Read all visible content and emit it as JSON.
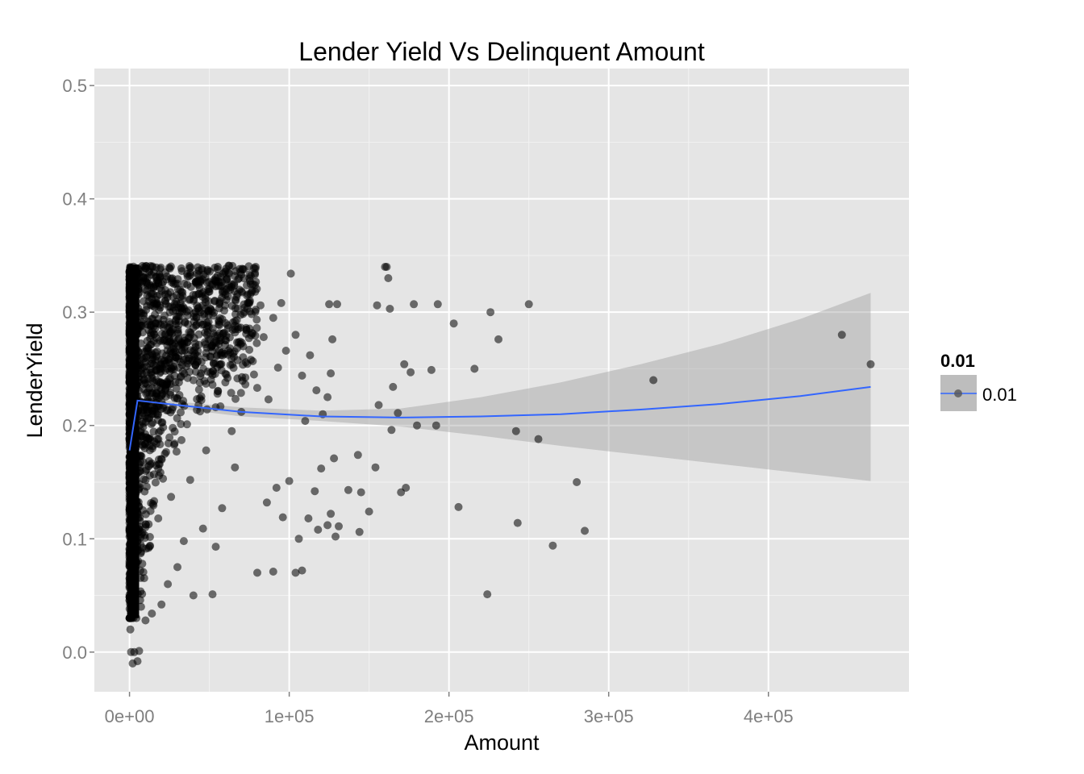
{
  "chart_data": {
    "type": "scatter",
    "title": "Lender Yield Vs Delinquent Amount",
    "xlabel": "Amount",
    "ylabel": "LenderYield",
    "xlim": [
      -22000,
      488000
    ],
    "ylim": [
      -0.035,
      0.515
    ],
    "x_ticks": [
      0,
      100000,
      200000,
      300000,
      400000
    ],
    "x_tick_labels": [
      "0e+00",
      "1e+05",
      "2e+05",
      "3e+05",
      "4e+05"
    ],
    "y_ticks": [
      0.0,
      0.1,
      0.2,
      0.3,
      0.4,
      0.5
    ],
    "y_tick_labels": [
      "0.0",
      "0.1",
      "0.2",
      "0.3",
      "0.4",
      "0.5"
    ],
    "grid": true,
    "legend": {
      "position": "right",
      "title": "0.01",
      "entries": [
        "0.01"
      ]
    },
    "colors": {
      "panel": "#e5e5e5",
      "grid_major": "#ffffff",
      "grid_minor": "#f2f2f2",
      "points": "#000000",
      "smooth_line": "#3366ff",
      "ribbon": "#999999"
    },
    "series": [
      {
        "name": "0.01",
        "points": [
          [
            125000,
            0.307
          ],
          [
            130000,
            0.307
          ],
          [
            160000,
            0.34
          ],
          [
            161000,
            0.34
          ],
          [
            162000,
            0.33
          ],
          [
            155000,
            0.306
          ],
          [
            163000,
            0.303
          ],
          [
            178000,
            0.307
          ],
          [
            193000,
            0.307
          ],
          [
            250000,
            0.307
          ],
          [
            226000,
            0.3
          ],
          [
            203000,
            0.29
          ],
          [
            231000,
            0.276
          ],
          [
            446000,
            0.28
          ],
          [
            464000,
            0.254
          ],
          [
            328000,
            0.24
          ],
          [
            216000,
            0.25
          ],
          [
            172000,
            0.254
          ],
          [
            176000,
            0.247
          ],
          [
            165000,
            0.234
          ],
          [
            189000,
            0.249
          ],
          [
            156000,
            0.218
          ],
          [
            168000,
            0.211
          ],
          [
            180000,
            0.2
          ],
          [
            192000,
            0.2
          ],
          [
            242000,
            0.195
          ],
          [
            256000,
            0.188
          ],
          [
            164000,
            0.196
          ],
          [
            154000,
            0.163
          ],
          [
            173000,
            0.145
          ],
          [
            170000,
            0.141
          ],
          [
            150000,
            0.124
          ],
          [
            206000,
            0.128
          ],
          [
            243000,
            0.114
          ],
          [
            280000,
            0.15
          ],
          [
            285000,
            0.107
          ],
          [
            265000,
            0.094
          ],
          [
            224000,
            0.051
          ],
          [
            145000,
            0.141
          ],
          [
            144000,
            0.106
          ],
          [
            143000,
            0.174
          ],
          [
            137000,
            0.143
          ],
          [
            131000,
            0.111
          ],
          [
            129000,
            0.102
          ],
          [
            128000,
            0.171
          ],
          [
            126000,
            0.122
          ],
          [
            124000,
            0.112
          ],
          [
            120000,
            0.162
          ],
          [
            118000,
            0.108
          ],
          [
            116000,
            0.142
          ],
          [
            112000,
            0.118
          ],
          [
            108000,
            0.072
          ],
          [
            106000,
            0.1
          ],
          [
            104000,
            0.07
          ],
          [
            100000,
            0.151
          ],
          [
            96000,
            0.119
          ],
          [
            92000,
            0.145
          ],
          [
            90000,
            0.071
          ],
          [
            86000,
            0.132
          ],
          [
            80000,
            0.07
          ],
          [
            127000,
            0.276
          ],
          [
            126000,
            0.246
          ],
          [
            124000,
            0.225
          ],
          [
            121000,
            0.21
          ],
          [
            117000,
            0.231
          ],
          [
            113000,
            0.262
          ],
          [
            110000,
            0.204
          ],
          [
            108000,
            0.244
          ],
          [
            104000,
            0.28
          ],
          [
            101000,
            0.334
          ],
          [
            98000,
            0.266
          ],
          [
            95000,
            0.308
          ],
          [
            93000,
            0.251
          ],
          [
            90000,
            0.295
          ],
          [
            87000,
            0.223
          ],
          [
            84000,
            0.278
          ],
          [
            82000,
            0.306
          ],
          [
            79000,
            0.34
          ],
          [
            76000,
            0.258
          ],
          [
            73000,
            0.286
          ],
          [
            70000,
            0.212
          ],
          [
            68000,
            0.329
          ],
          [
            66000,
            0.163
          ],
          [
            64000,
            0.195
          ],
          [
            62000,
            0.341
          ],
          [
            60000,
            0.238
          ],
          [
            58000,
            0.127
          ],
          [
            56000,
            0.272
          ],
          [
            54000,
            0.093
          ],
          [
            52000,
            0.051
          ],
          [
            50000,
            0.318
          ],
          [
            48000,
            0.178
          ],
          [
            46000,
            0.109
          ],
          [
            44000,
            0.224
          ],
          [
            42000,
            0.289
          ],
          [
            40000,
            0.05
          ],
          [
            38000,
            0.152
          ],
          [
            36000,
            0.201
          ],
          [
            34000,
            0.098
          ],
          [
            32000,
            0.256
          ],
          [
            30000,
            0.075
          ],
          [
            28000,
            0.183
          ],
          [
            26000,
            0.137
          ],
          [
            24000,
            0.06
          ],
          [
            22000,
            0.297
          ],
          [
            20000,
            0.042
          ],
          [
            18000,
            0.118
          ],
          [
            16000,
            0.214
          ],
          [
            14000,
            0.034
          ],
          [
            12000,
            0.164
          ],
          [
            10000,
            0.028
          ],
          [
            8000,
            0.078
          ],
          [
            6000,
            0.001
          ],
          [
            5000,
            -0.008
          ],
          [
            3000,
            0.0
          ],
          [
            2000,
            -0.01
          ],
          [
            1000,
            0.0
          ],
          [
            500,
            0.02
          ],
          [
            1500,
            0.031
          ],
          [
            2500,
            0.045
          ]
        ]
      }
    ],
    "smooth": {
      "x": [
        0,
        5000,
        30000,
        70000,
        120000,
        170000,
        220000,
        270000,
        320000,
        370000,
        420000,
        464000
      ],
      "y": [
        0.178,
        0.222,
        0.218,
        0.212,
        0.208,
        0.207,
        0.208,
        0.21,
        0.214,
        0.219,
        0.226,
        0.234
      ],
      "lower": [
        0.169,
        0.22,
        0.215,
        0.208,
        0.204,
        0.199,
        0.191,
        0.182,
        0.174,
        0.166,
        0.158,
        0.151
      ],
      "upper": [
        0.187,
        0.224,
        0.221,
        0.216,
        0.213,
        0.215,
        0.225,
        0.238,
        0.254,
        0.272,
        0.294,
        0.317
      ]
    },
    "dense_band": {
      "x_range": [
        0,
        80000
      ],
      "y_range": [
        -0.01,
        0.341
      ]
    }
  }
}
